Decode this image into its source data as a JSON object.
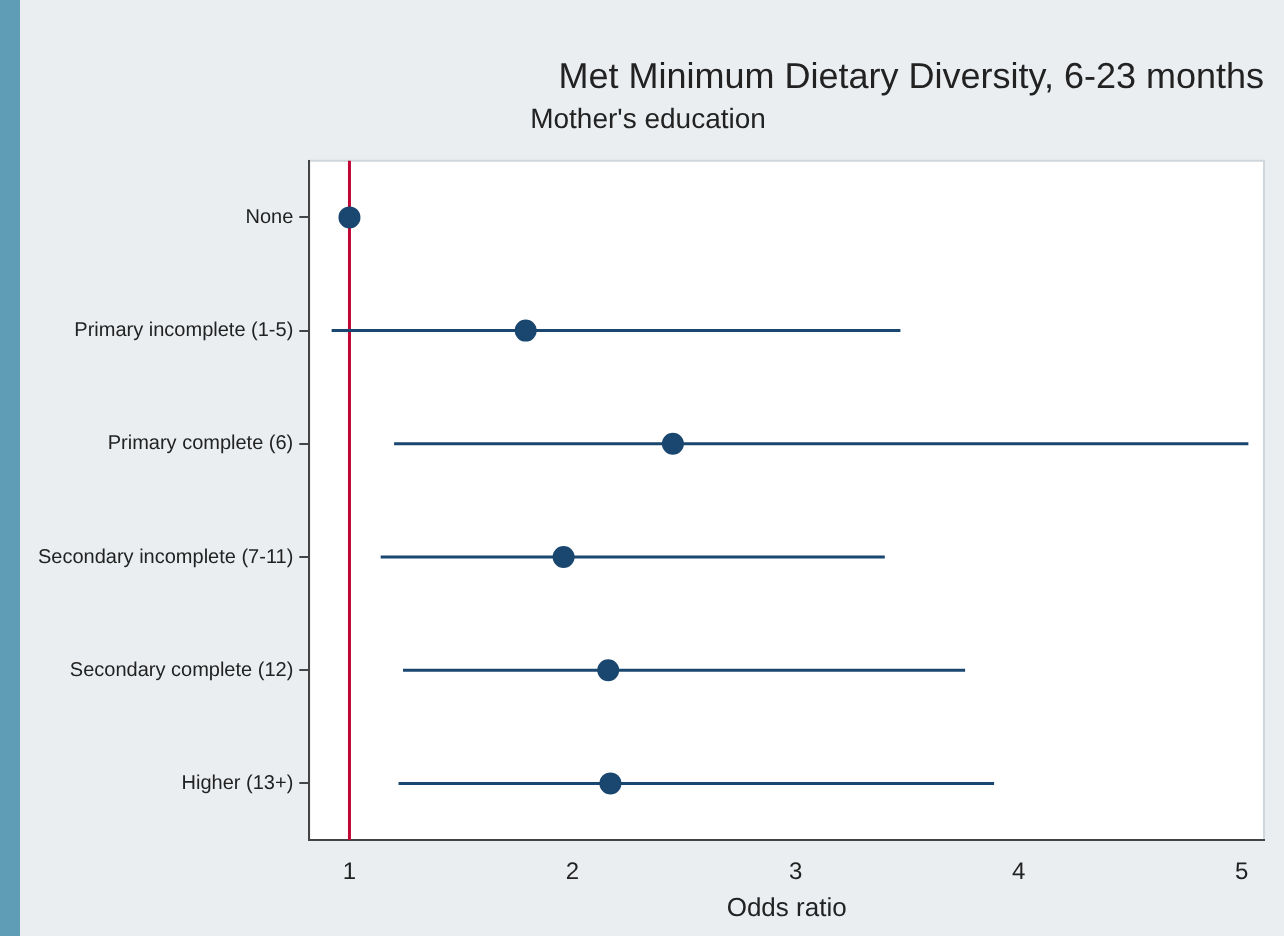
{
  "chart_data": {
    "type": "scatter",
    "orientation": "horizontal",
    "title": "Met Minimum Dietary Diversity, 6-23 months",
    "subtitle": "Mother's education",
    "xlabel": "Odds ratio",
    "categories": [
      "None",
      "Primary incomplete (1-5)",
      "Primary complete (6)",
      "Secondary incomplete (7-11)",
      "Secondary complete (12)",
      "Higher (13+)"
    ],
    "series": [
      {
        "color": "#1a476f",
        "values": [
          1.0,
          1.79,
          2.45,
          1.96,
          2.16,
          2.17
        ],
        "errors": [
          null,
          [
            0.92,
            3.47
          ],
          [
            1.2,
            5.03
          ],
          [
            1.14,
            3.4
          ],
          [
            1.24,
            3.76
          ],
          [
            1.22,
            3.89
          ]
        ]
      }
    ],
    "xlim": [
      0.82,
      5.1
    ],
    "xticks": [
      1,
      2,
      3,
      4,
      5
    ],
    "ref_lines": [
      {
        "axis": "x",
        "value": 1,
        "color": "#c10534"
      }
    ],
    "marker": "circle",
    "grid": false,
    "legend": false
  }
}
